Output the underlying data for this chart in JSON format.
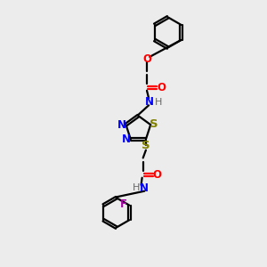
{
  "bg_color": "#ececec",
  "line_color": "#000000",
  "N_color": "#0000ff",
  "O_color": "#ff0000",
  "S_color": "#808000",
  "F_color": "#aa00aa",
  "H_color": "#666666",
  "line_width": 1.6,
  "font_size": 8.5,
  "xlim": [
    0,
    10
  ],
  "ylim": [
    0,
    14
  ]
}
